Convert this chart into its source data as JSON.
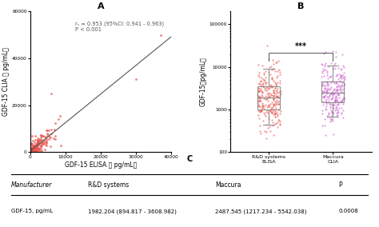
{
  "panel_A": {
    "title": "A",
    "xlabel": "GDF-15 ELISA （ pg/mL）",
    "ylabel": "GDF-15 CLIA （ pg/mL）",
    "annotation": "rₛ = 0.953 (95%CI: 0.941 - 0.963)\nP < 0.001",
    "xlim": [
      0,
      40000
    ],
    "ylim": [
      0,
      60000
    ],
    "xticks": [
      0,
      10000,
      20000,
      30000,
      40000
    ],
    "yticks": [
      0,
      20000,
      40000,
      60000
    ],
    "scatter_color": "#e8534a",
    "line_color": "#555555"
  },
  "panel_B": {
    "title": "B",
    "ylabel": "GDF-15（pg/mL）",
    "group1_label": "R&D systems\nELISA",
    "group2_label": "Maccura\nCLIA",
    "scatter_color1": "#e8534a",
    "scatter_color2": "#cc66cc",
    "significance": "***",
    "yticks_log": [
      100,
      1000,
      10000,
      100000
    ]
  },
  "panel_C": {
    "title": "C",
    "col_headers": [
      "Manufacturer",
      "R&D systems",
      "Maccura",
      "P"
    ],
    "row_data": [
      "GDF-15, pg/mL",
      "1982.204 (894.817 - 3608.982)",
      "2487.545 (1217.234 - 5542.038)",
      "0.0008"
    ]
  }
}
